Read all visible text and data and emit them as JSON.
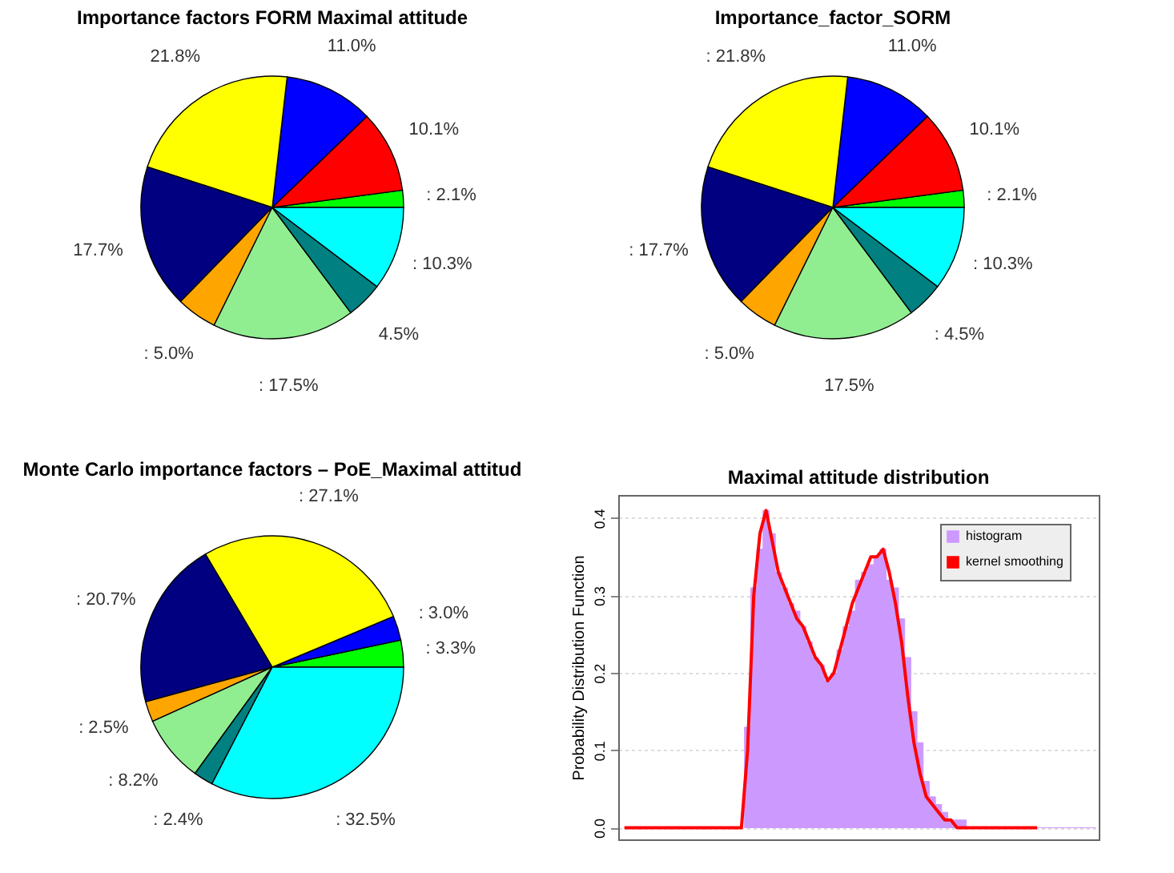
{
  "chart_data": [
    {
      "type": "pie",
      "title": "Importance factors FORM Maximal attitude",
      "categories": [
        null,
        null,
        null,
        null,
        null,
        null,
        null,
        null,
        null
      ],
      "values": [
        2.1,
        10.1,
        11.0,
        21.8,
        17.7,
        5.0,
        17.5,
        4.5,
        10.3
      ],
      "colors": [
        "#00ff00",
        "#ff0000",
        "#0000ff",
        "#ffff00",
        "#000080",
        "#ffa500",
        "#90ee90",
        "#008080",
        "#00ffff"
      ],
      "value_labels": [
        ": 2.1%",
        "10.1%",
        "11.0%",
        "21.8%",
        "17.7%",
        ": 5.0%",
        ": 17.5%",
        "4.5%",
        ": 10.3%"
      ]
    },
    {
      "type": "pie",
      "title": "Importance_factor_SORM",
      "categories": [
        null,
        null,
        null,
        null,
        null,
        null,
        null,
        null,
        null
      ],
      "values": [
        2.1,
        10.1,
        11.0,
        21.8,
        17.7,
        5.0,
        17.5,
        4.5,
        10.3
      ],
      "colors": [
        "#00ff00",
        "#ff0000",
        "#0000ff",
        "#ffff00",
        "#000080",
        "#ffa500",
        "#90ee90",
        "#008080",
        "#00ffff"
      ],
      "value_labels": [
        ": 2.1%",
        "10.1%",
        "11.0%",
        ": 21.8%",
        ": 17.7%",
        ": 5.0%",
        "17.5%",
        ": 4.5%",
        ": 10.3%"
      ]
    },
    {
      "type": "pie",
      "title": "Monte Carlo importance factors – PoE_Maximal attitud",
      "categories": [
        null,
        null,
        null,
        null,
        null,
        null,
        null,
        null
      ],
      "values": [
        3.3,
        3.0,
        27.1,
        20.7,
        2.5,
        8.2,
        2.4,
        32.5
      ],
      "colors": [
        "#00ff00",
        "#0000ff",
        "#ffff00",
        "#000080",
        "#ffa500",
        "#90ee90",
        "#008080",
        "#00ffff"
      ],
      "value_labels": [
        ": 3.3%",
        ": 3.0%",
        ": 27.1%",
        ": 20.7%",
        ": 2.5%",
        ": 8.2%",
        ": 2.4%",
        ": 32.5%"
      ]
    },
    {
      "type": "bar",
      "title": "Maximal attitude distribution",
      "ylabel": "Probability Distribution Function",
      "categories": [
        null,
        null,
        null,
        null,
        null,
        null,
        null,
        null,
        null,
        null,
        null,
        null,
        null,
        null,
        null,
        null,
        null,
        null,
        null,
        null,
        null,
        null,
        null,
        null,
        null,
        null,
        null,
        null,
        null,
        null,
        null,
        null,
        null,
        null,
        null,
        null,
        null,
        null,
        null,
        null,
        null,
        null,
        null,
        null,
        null,
        null,
        null,
        null,
        null,
        null,
        null,
        null,
        null,
        null,
        null,
        null,
        null,
        null,
        null,
        null,
        null,
        null,
        null,
        null,
        null,
        null,
        null,
        null,
        null,
        null,
        null,
        null,
        null,
        null,
        null,
        null,
        null
      ],
      "series": [
        {
          "name": "histogram",
          "type": "bar",
          "color": "#cc99ff",
          "values": [
            null,
            null,
            null,
            null,
            null,
            null,
            null,
            null,
            null,
            null,
            null,
            null,
            null,
            null,
            null,
            null,
            null,
            null,
            null,
            null,
            0.13,
            0.31,
            0.36,
            0.41,
            0.38,
            0.33,
            0.31,
            0.29,
            0.28,
            0.26,
            0.24,
            0.22,
            0.21,
            0.19,
            0.2,
            0.23,
            0.26,
            0.28,
            0.32,
            0.33,
            0.34,
            0.35,
            0.36,
            0.32,
            0.31,
            0.27,
            0.22,
            0.15,
            0.11,
            0.06,
            0.04,
            0.03,
            0.02,
            0.01,
            0.01,
            0.01,
            0,
            0,
            0,
            0,
            0,
            0,
            0,
            0,
            0,
            0,
            0,
            0,
            0,
            0,
            0,
            0,
            0,
            0,
            0,
            0,
            0
          ]
        },
        {
          "name": "kernel smoothing",
          "type": "line",
          "color": "#ff0000",
          "values": [
            0,
            0,
            0,
            0,
            0,
            0,
            0,
            0,
            0,
            0,
            0,
            0,
            0,
            0,
            0,
            0,
            0,
            0,
            0,
            0,
            0.1,
            0.3,
            0.38,
            0.41,
            0.37,
            0.33,
            0.31,
            0.29,
            0.27,
            0.26,
            0.24,
            0.22,
            0.21,
            0.19,
            0.2,
            0.23,
            0.26,
            0.29,
            0.31,
            0.33,
            0.35,
            0.35,
            0.36,
            0.33,
            0.29,
            0.24,
            0.17,
            0.11,
            0.07,
            0.04,
            0.03,
            0.02,
            0.01,
            0.01,
            0,
            0,
            0,
            0,
            0,
            0,
            0,
            0,
            0,
            0,
            0,
            0,
            0,
            0,
            null,
            null,
            null,
            null,
            null,
            null,
            null,
            null,
            null
          ]
        }
      ],
      "ylim": [
        -0.015,
        0.43
      ],
      "yticks": [
        {
          "value": 0,
          "label": "0.0"
        },
        0.1,
        0.2,
        0.3,
        0.4
      ],
      "grid": "y",
      "legend": "top right",
      "tick_labels": "y"
    }
  ]
}
